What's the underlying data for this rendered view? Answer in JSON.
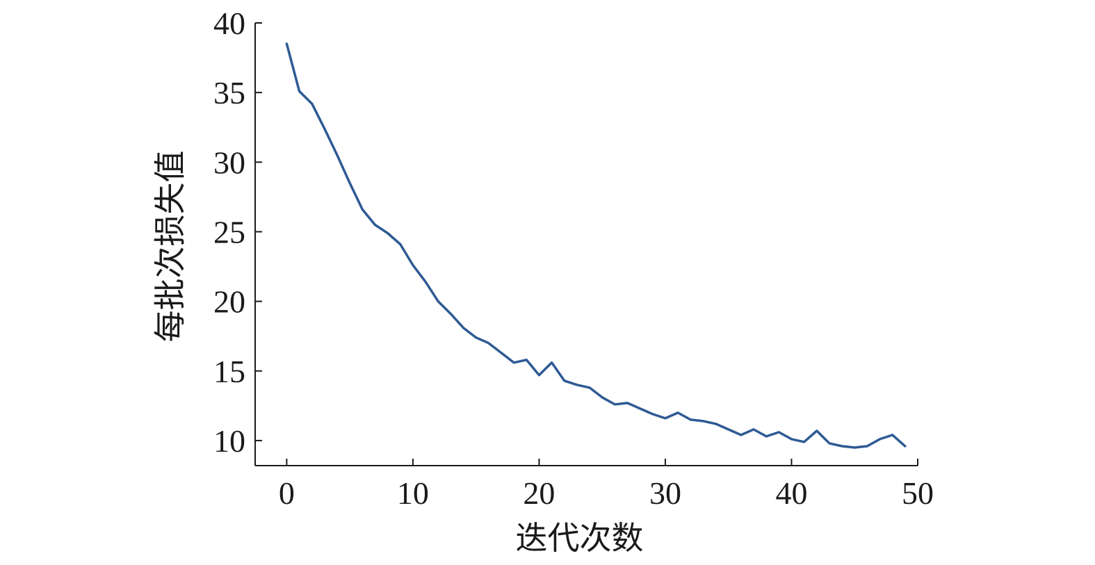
{
  "chart_data": {
    "type": "line",
    "title": "",
    "xlabel": "迭代次数",
    "ylabel": "每批次损失值",
    "xlim": [
      -2.5,
      50
    ],
    "ylim": [
      8.2,
      40
    ],
    "xticks": [
      0,
      10,
      20,
      30,
      40,
      50
    ],
    "yticks": [
      10,
      15,
      20,
      25,
      30,
      35,
      40
    ],
    "xtick_labels": [
      "0",
      "10",
      "20",
      "30",
      "40",
      "50"
    ],
    "ytick_labels": [
      "10",
      "15",
      "20",
      "25",
      "30",
      "35",
      "40"
    ],
    "grid": false,
    "legend": "none",
    "series": [
      {
        "color": "#2e5a94",
        "x": [
          0,
          1,
          2,
          3,
          4,
          5,
          6,
          7,
          8,
          9,
          10,
          11,
          12,
          13,
          14,
          15,
          16,
          17,
          18,
          19,
          20,
          21,
          22,
          23,
          24,
          25,
          26,
          27,
          28,
          29,
          30,
          31,
          32,
          33,
          34,
          35,
          36,
          37,
          38,
          39,
          40,
          41,
          42,
          43,
          44,
          45,
          46,
          47,
          48,
          49
        ],
        "y": [
          38.5,
          35.1,
          34.2,
          32.4,
          30.5,
          28.5,
          26.6,
          25.5,
          24.9,
          24.1,
          22.6,
          21.4,
          20.0,
          19.1,
          18.1,
          17.4,
          17.0,
          16.3,
          15.6,
          15.8,
          14.7,
          15.6,
          14.3,
          14.0,
          13.8,
          13.1,
          12.6,
          12.7,
          12.3,
          11.9,
          11.6,
          12.0,
          11.5,
          11.4,
          11.2,
          10.8,
          10.4,
          10.8,
          10.3,
          10.6,
          10.1,
          9.9,
          10.7,
          9.8,
          9.6,
          9.5,
          9.6,
          10.1,
          10.4,
          9.6
        ]
      }
    ]
  }
}
